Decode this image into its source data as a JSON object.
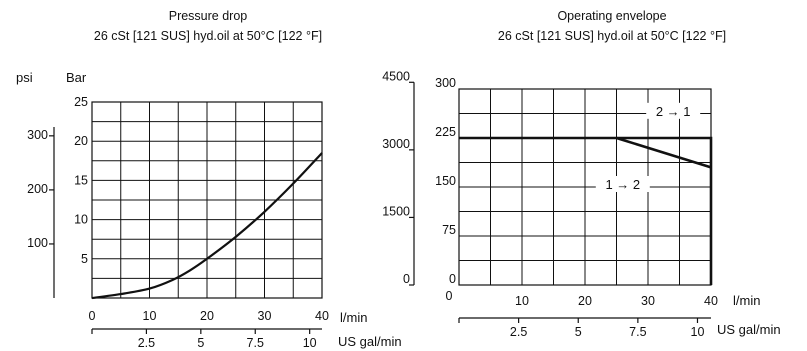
{
  "chart_data": [
    {
      "type": "line",
      "title": "Pressure drop",
      "subtitle": "26 cSt [121 SUS] hyd.oil at 50°C [122 °F]",
      "xlabel": "l/min",
      "x2label": "US gal/min",
      "ylabel": "Bar",
      "y2label": "psi",
      "xlim": [
        0,
        40
      ],
      "ylim": [
        0,
        25
      ],
      "grid": true,
      "x_ticks": [
        "0",
        "10",
        "20",
        "30",
        "40"
      ],
      "y_ticks": [
        "5",
        "10",
        "15",
        "20",
        "25"
      ],
      "x2_ticks": [
        "2.5",
        "5",
        "7.5",
        "10"
      ],
      "y2_ticks": [
        "100",
        "200",
        "300"
      ],
      "series": [
        {
          "x": [
            0,
            5,
            10,
            14,
            17,
            20,
            25,
            30,
            35,
            40
          ],
          "values": [
            0,
            0.5,
            1.2,
            2.3,
            3.5,
            5,
            7.8,
            11,
            14.6,
            18.5
          ]
        }
      ]
    },
    {
      "type": "line",
      "title": "Operating envelope",
      "subtitle": "26 cSt [121 SUS] hyd.oil at 50°C [122 °F]",
      "xlabel": "l/min",
      "x2label": "US gal/min",
      "xlim": [
        0,
        40
      ],
      "ylim": [
        0,
        300
      ],
      "grid": true,
      "x_ticks": [
        "0",
        "10",
        "20",
        "30",
        "40"
      ],
      "y_ticks": [
        "0",
        "75",
        "150",
        "225",
        "300"
      ],
      "x2_ticks": [
        "2.5",
        "5",
        "7.5",
        "10"
      ],
      "y2_ticks": [
        "0",
        "1500",
        "3000",
        "4500"
      ],
      "series": [
        {
          "x": [
            0,
            40,
            40
          ],
          "values": [
            225,
            225,
            0
          ]
        },
        {
          "x": [
            25,
            40
          ],
          "values": [
            225,
            180
          ]
        }
      ],
      "annotations": [
        {
          "text": "2  →  1",
          "x": 34,
          "y": 262
        },
        {
          "text": "1  →  2",
          "x": 26,
          "y": 150
        }
      ]
    }
  ]
}
